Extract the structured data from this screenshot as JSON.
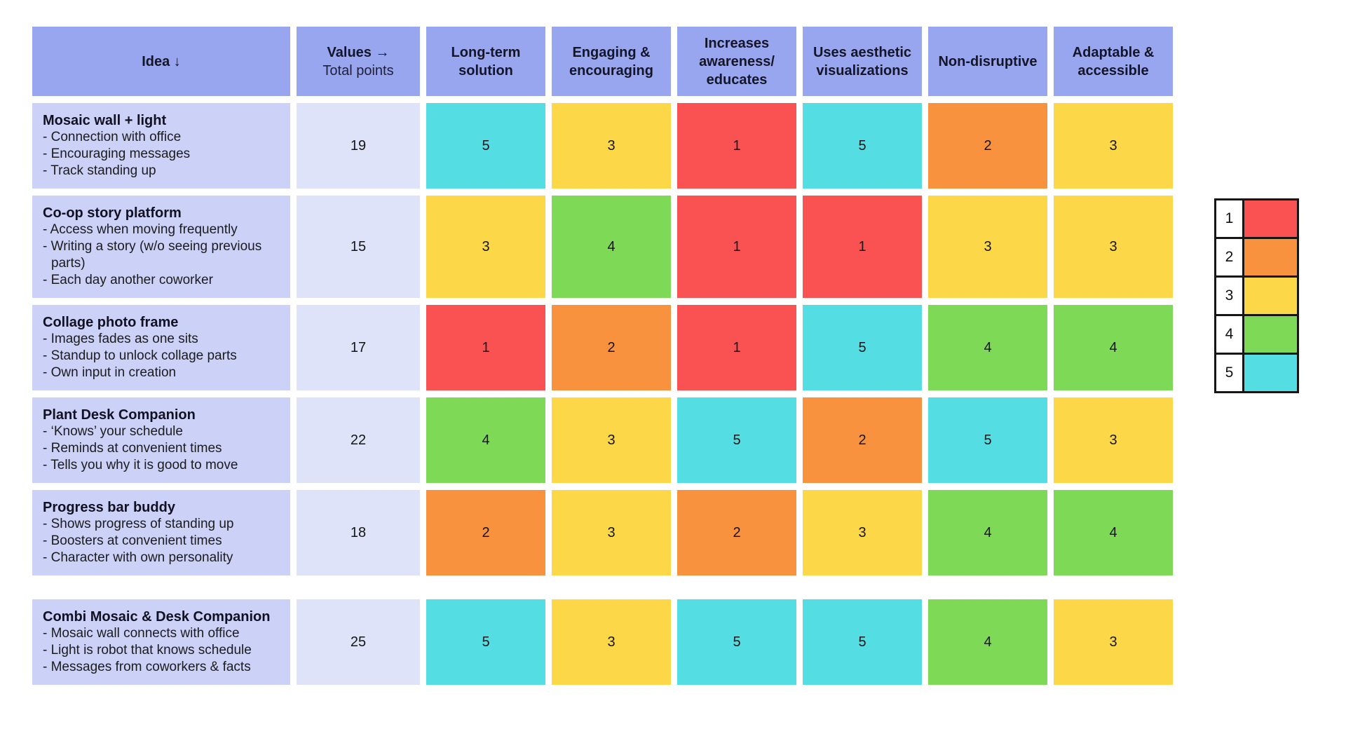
{
  "colors": {
    "canvas_bg": "#ffffff",
    "header_bg": "#98a6f0",
    "idea_cell_bg": "#cbd1f7",
    "total_cell_bg": "#dfe3f9",
    "legend_border": "#161616",
    "score_colors": {
      "1": "#fa5252",
      "2": "#f9923f",
      "3": "#fcd848",
      "4": "#7ed957",
      "5": "#55dde4"
    }
  },
  "chart_data": {
    "type": "table",
    "header": {
      "idea_label": "Idea ↓",
      "values_label": "Values →",
      "total_label": "Total points",
      "criteria": [
        "Long-term solution",
        "Engaging & encouraging",
        "Increases awareness/ educates",
        "Uses aesthetic visualizations",
        "Non-disruptive",
        "Adaptable & accessible"
      ]
    },
    "rows": [
      {
        "title": "Mosaic wall + light",
        "bullets": [
          "- Connection with office",
          "- Encouraging messages",
          "- Track standing up"
        ],
        "total": "19",
        "scores": [
          5,
          3,
          1,
          5,
          2,
          3
        ],
        "separated": false
      },
      {
        "title": "Co-op story platform",
        "bullets": [
          "- Access when moving frequently",
          "- Writing a story (w/o seeing previous parts)",
          "- Each day another coworker"
        ],
        "total": "15",
        "scores": [
          3,
          4,
          1,
          1,
          3,
          3
        ],
        "separated": false
      },
      {
        "title": "Collage photo frame",
        "bullets": [
          "- Images fades as one sits",
          "- Standup to unlock collage parts",
          "- Own input in creation"
        ],
        "total": "17",
        "scores": [
          1,
          2,
          1,
          5,
          4,
          4
        ],
        "separated": false
      },
      {
        "title": "Plant Desk Companion",
        "bullets": [
          "- ‘Knows’ your schedule",
          "- Reminds at convenient times",
          "- Tells you why it is good to move"
        ],
        "total": "22",
        "scores": [
          4,
          3,
          5,
          2,
          5,
          3
        ],
        "separated": false
      },
      {
        "title": "Progress bar buddy",
        "bullets": [
          "- Shows progress of standing up",
          "- Boosters at convenient times",
          "- Character with own personality"
        ],
        "total": "18",
        "scores": [
          2,
          3,
          2,
          3,
          4,
          4
        ],
        "separated": false
      },
      {
        "title": "Combi Mosaic & Desk Companion",
        "bullets": [
          "- Mosaic wall connects with office",
          "- Light is robot that knows schedule",
          "- Messages from coworkers & facts"
        ],
        "total": "25",
        "scores": [
          5,
          3,
          5,
          5,
          4,
          3
        ],
        "separated": true
      }
    ],
    "legend": [
      {
        "label": "1",
        "score": 1
      },
      {
        "label": "2",
        "score": 2
      },
      {
        "label": "3",
        "score": 3
      },
      {
        "label": "4",
        "score": 4
      },
      {
        "label": "5",
        "score": 5
      }
    ]
  }
}
